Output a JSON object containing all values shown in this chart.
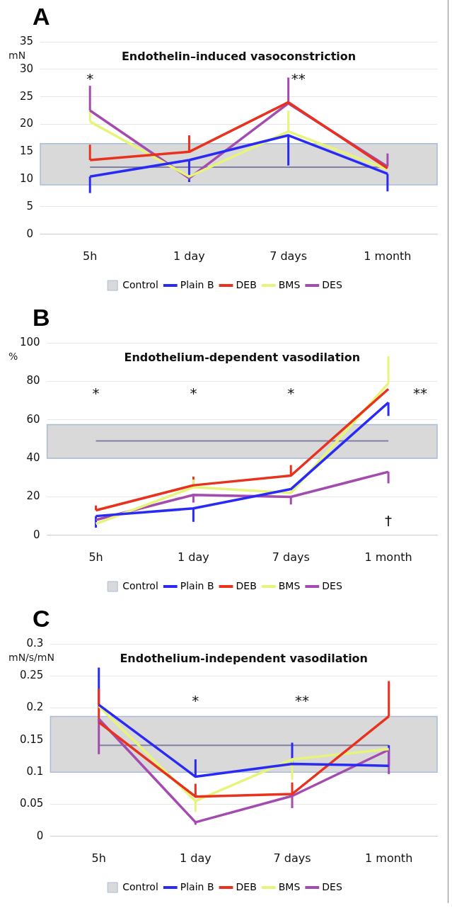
{
  "chart_data": [
    {
      "type": "line",
      "title": "A",
      "subtitle": "Endothelin–induced vasoconstriction",
      "ylabel": "mN",
      "categories": [
        "5h",
        "1 day",
        "7 days",
        "1 month"
      ],
      "ylim": [
        0,
        35
      ],
      "yticks": [
        0,
        5,
        10,
        15,
        20,
        25,
        30,
        35
      ],
      "grid": "y",
      "legend": "bottom",
      "marker": "none",
      "series": [
        {
          "name": "Plain B",
          "color": "#2a2af5",
          "values": [
            10.5,
            13.5,
            18,
            11
          ],
          "errors": [
            [
              7.5,
              10.5
            ],
            [
              9.5,
              13.5
            ],
            [
              12.5,
              18
            ],
            [
              7.8,
              11
            ]
          ]
        },
        {
          "name": "DEB",
          "color": "#e8321e",
          "values": [
            13.5,
            15,
            24,
            12
          ],
          "errors": [
            [
              13.5,
              16.3
            ],
            [
              15,
              18
            ],
            null,
            null
          ]
        },
        {
          "name": "BMS",
          "color": "#e6f57a",
          "values": [
            20.5,
            10.5,
            18.7,
            11.8
          ],
          "errors": [
            [
              20.5,
              22.5
            ],
            null,
            [
              18.7,
              22.5
            ],
            null
          ]
        },
        {
          "name": "DES",
          "color": "#a44bb0",
          "values": [
            22.5,
            10.2,
            23.8,
            12.3
          ],
          "errors": [
            [
              22.5,
              27
            ],
            null,
            [
              23.8,
              28.5
            ],
            [
              12.3,
              14.7
            ]
          ]
        }
      ],
      "bands": [
        {
          "axis": "y",
          "from": 9,
          "to": 16.5,
          "label": "Control",
          "color": "#d9d9d9"
        }
      ],
      "ref_lines": [
        {
          "axis": "y",
          "value": 12.2,
          "color": "#8080a0"
        }
      ],
      "annotations": [
        "*",
        "**"
      ]
    },
    {
      "type": "line",
      "title": "B",
      "subtitle": "Endothelium-dependent vasodilation",
      "ylabel": "%",
      "categories": [
        "5h",
        "1 day",
        "7 days",
        "1 month"
      ],
      "ylim": [
        0,
        100
      ],
      "yticks": [
        0,
        20,
        40,
        60,
        80,
        100
      ],
      "grid": "y",
      "legend": "bottom",
      "marker": "none",
      "series": [
        {
          "name": "Plain B",
          "color": "#2a2af5",
          "values": [
            10,
            14,
            24,
            69
          ],
          "errors": [
            [
              4,
              10
            ],
            [
              7,
              14
            ],
            null,
            [
              62,
              69
            ]
          ]
        },
        {
          "name": "DEB",
          "color": "#e8321e",
          "values": [
            13,
            26,
            31,
            76
          ],
          "errors": [
            [
              13,
              15.5
            ],
            [
              26,
              30.5
            ],
            [
              31,
              36.5
            ],
            null
          ]
        },
        {
          "name": "BMS",
          "color": "#e6f57a",
          "values": [
            6,
            25,
            22,
            79
          ],
          "errors": [
            null,
            [
              25,
              29
            ],
            null,
            [
              79,
              93
            ]
          ]
        },
        {
          "name": "DES",
          "color": "#a44bb0",
          "values": [
            8,
            21,
            20,
            33
          ],
          "errors": [
            null,
            [
              17,
              21
            ],
            [
              16,
              20
            ],
            [
              27,
              33
            ]
          ]
        }
      ],
      "bands": [
        {
          "axis": "y",
          "from": 40,
          "to": 57.5,
          "label": "Control",
          "color": "#d9d9d9"
        }
      ],
      "ref_lines": [
        {
          "axis": "y",
          "value": 49,
          "color": "#8080a0"
        }
      ],
      "annotations": [
        "*",
        "*",
        "*",
        "**",
        "†"
      ]
    },
    {
      "type": "line",
      "title": "C",
      "subtitle": "Endothelium-independent vasodilation",
      "ylabel": "mN/s/mN",
      "categories": [
        "5h",
        "1 day",
        "7 days",
        "1 month"
      ],
      "ylim": [
        0,
        0.3
      ],
      "yticks": [
        0,
        0.05,
        0.1,
        0.15,
        0.2,
        0.25,
        0.3
      ],
      "grid": "y",
      "legend": "bottom",
      "marker": "none",
      "series": [
        {
          "name": "Plain B",
          "color": "#2a2af5",
          "values": [
            0.205,
            0.093,
            0.113,
            0.11
          ],
          "errors": [
            [
              0.205,
              0.263
            ],
            [
              0.093,
              0.12
            ],
            [
              0.113,
              0.146
            ],
            [
              0.11,
              0.142
            ]
          ]
        },
        {
          "name": "DEB",
          "color": "#e8321e",
          "values": [
            0.178,
            0.062,
            0.066,
            0.187
          ],
          "errors": [
            [
              0.178,
              0.23
            ],
            [
              0.062,
              0.082
            ],
            [
              0.066,
              0.084
            ],
            [
              0.187,
              0.242
            ]
          ]
        },
        {
          "name": "BMS",
          "color": "#e6f57a",
          "values": [
            0.203,
            0.055,
            0.12,
            0.136
          ],
          "errors": [
            null,
            [
              0.038,
              0.055
            ],
            [
              0.088,
              0.12
            ],
            null
          ]
        },
        {
          "name": "DES",
          "color": "#a44bb0",
          "values": [
            0.183,
            0.022,
            0.063,
            0.135
          ],
          "errors": [
            [
              0.128,
              0.183
            ],
            [
              0.018,
              0.022
            ],
            [
              0.044,
              0.063
            ],
            [
              0.097,
              0.135
            ]
          ]
        }
      ],
      "bands": [
        {
          "axis": "y",
          "from": 0.1,
          "to": 0.187,
          "label": "Control",
          "color": "#d9d9d9"
        }
      ],
      "ref_lines": [
        {
          "axis": "y",
          "value": 0.142,
          "color": "#8080a0"
        }
      ],
      "annotations": [
        "*",
        "**"
      ]
    }
  ]
}
